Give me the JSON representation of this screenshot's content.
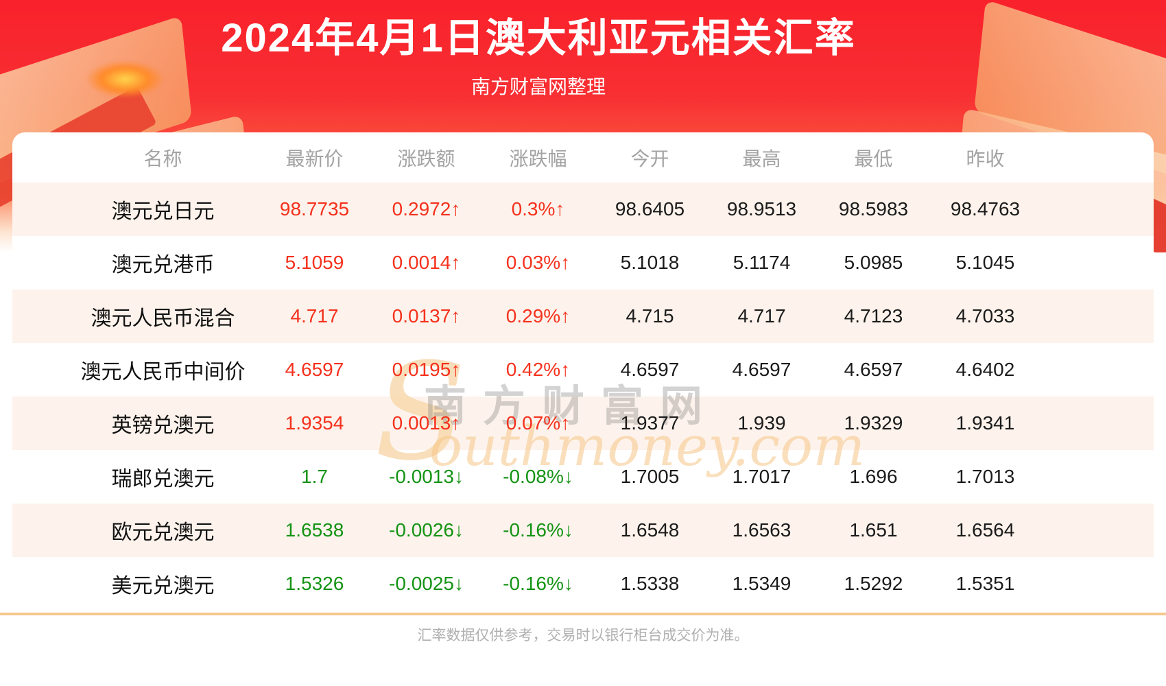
{
  "header": {
    "title": "2024年4月1日澳大利亚元相关汇率",
    "subtitle": "南方财富网整理"
  },
  "watermark": {
    "cn": "南方财富网",
    "en_initial": "S",
    "en_rest": "outhmoney.com"
  },
  "table": {
    "columns": [
      "名称",
      "最新价",
      "涨跌额",
      "涨跌幅",
      "今开",
      "最高",
      "最低",
      "昨收"
    ],
    "rows": [
      {
        "name": "澳元兑日元",
        "latest": "98.7735",
        "change": "0.2972↑",
        "change_pct": "0.3%↑",
        "open": "98.6405",
        "high": "98.9513",
        "low": "98.5983",
        "prev_close": "98.4763",
        "trend": "up"
      },
      {
        "name": "澳元兑港币",
        "latest": "5.1059",
        "change": "0.0014↑",
        "change_pct": "0.03%↑",
        "open": "5.1018",
        "high": "5.1174",
        "low": "5.0985",
        "prev_close": "5.1045",
        "trend": "up"
      },
      {
        "name": "澳元人民币混合",
        "latest": "4.717",
        "change": "0.0137↑",
        "change_pct": "0.29%↑",
        "open": "4.715",
        "high": "4.717",
        "low": "4.7123",
        "prev_close": "4.7033",
        "trend": "up"
      },
      {
        "name": "澳元人民币中间价",
        "latest": "4.6597",
        "change": "0.0195↑",
        "change_pct": "0.42%↑",
        "open": "4.6597",
        "high": "4.6597",
        "low": "4.6597",
        "prev_close": "4.6402",
        "trend": "up"
      },
      {
        "name": "英镑兑澳元",
        "latest": "1.9354",
        "change": "0.0013↑",
        "change_pct": "0.07%↑",
        "open": "1.9377",
        "high": "1.939",
        "low": "1.9329",
        "prev_close": "1.9341",
        "trend": "up"
      },
      {
        "name": "瑞郎兑澳元",
        "latest": "1.7",
        "change": "-0.0013↓",
        "change_pct": "-0.08%↓",
        "open": "1.7005",
        "high": "1.7017",
        "low": "1.696",
        "prev_close": "1.7013",
        "trend": "down"
      },
      {
        "name": "欧元兑澳元",
        "latest": "1.6538",
        "change": "-0.0026↓",
        "change_pct": "-0.16%↓",
        "open": "1.6548",
        "high": "1.6563",
        "low": "1.651",
        "prev_close": "1.6564",
        "trend": "down"
      },
      {
        "name": "美元兑澳元",
        "latest": "1.5326",
        "change": "-0.0025↓",
        "change_pct": "-0.16%↓",
        "open": "1.5338",
        "high": "1.5349",
        "low": "1.5292",
        "prev_close": "1.5351",
        "trend": "down"
      }
    ]
  },
  "footer": {
    "disclaimer": "汇率数据仅供参考，交易时以银行柜台成交价为准。"
  },
  "colors": {
    "up_red": "#f5311d",
    "down_green": "#149314",
    "banner_red": "#f9212b",
    "row_stripe": "#fdf3ec",
    "divider_orange": "#f6c78f"
  }
}
